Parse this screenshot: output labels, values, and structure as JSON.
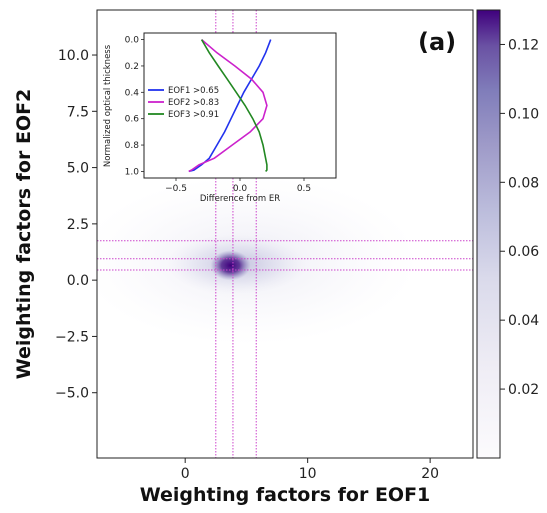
{
  "chart_data": [
    {
      "type": "heatmap",
      "panel_label": "(a)",
      "xlabel": "Weighting factors for EOF1",
      "ylabel": "Weighting factors for EOF2",
      "xlim": [
        -7.2,
        23.5
      ],
      "ylim": [
        -7.9,
        12.0
      ],
      "xticks": [
        0,
        10,
        20
      ],
      "xtick_labels": [
        "0",
        "10",
        "20"
      ],
      "yticks": [
        -5.0,
        -2.5,
        0.0,
        2.5,
        5.0,
        7.5,
        10.0
      ],
      "ytick_labels": [
        "−5.0",
        "−2.5",
        "0.0",
        "2.5",
        "5.0",
        "7.5",
        "10.0"
      ],
      "density_peak": {
        "x": 3.7,
        "y": 0.7
      },
      "vertical_reference_lines_x": [
        2.5,
        3.9,
        5.8
      ],
      "horizontal_reference_lines_y": [
        0.45,
        0.95,
        1.75
      ],
      "reference_line_color": "#cc44cc",
      "colorbar": {
        "ticks": [
          0.02,
          0.04,
          0.06,
          0.08,
          0.1,
          0.12
        ],
        "tick_labels": [
          "0.02",
          "0.04",
          "0.06",
          "0.08",
          "0.10",
          "0.12"
        ],
        "range": [
          0.0,
          0.13
        ],
        "colormap": "Purples",
        "color_low": "#fcfbfd",
        "color_high": "#3f007d"
      }
    },
    {
      "type": "line",
      "xlabel": "Difference from ER",
      "ylabel": "Normalized optical thickness",
      "xlim": [
        -0.75,
        0.75
      ],
      "ylim": [
        1.05,
        -0.05
      ],
      "xticks": [
        -0.5,
        0.0,
        0.5
      ],
      "xtick_labels": [
        "−0.5",
        "0.0",
        "0.5"
      ],
      "yticks": [
        0.0,
        0.2,
        0.4,
        0.6,
        0.8,
        1.0
      ],
      "ytick_labels": [
        "0.0",
        "0.2",
        "0.4",
        "0.6",
        "0.8",
        "1.0"
      ],
      "legend_position": "center-left",
      "series": [
        {
          "name": "EOF1 >0.65",
          "color": "#2233ee",
          "x": [
            0.24,
            0.2,
            0.15,
            0.09,
            0.03,
            -0.02,
            -0.07,
            -0.12,
            -0.18,
            -0.24,
            -0.3,
            -0.36,
            -0.4
          ],
          "y": [
            0.0,
            0.1,
            0.2,
            0.3,
            0.4,
            0.5,
            0.6,
            0.7,
            0.8,
            0.9,
            0.95,
            0.99,
            1.0
          ]
        },
        {
          "name": "EOF2 >0.83",
          "color": "#cc22cc",
          "x": [
            -0.3,
            -0.18,
            -0.04,
            0.09,
            0.18,
            0.21,
            0.18,
            0.08,
            -0.06,
            -0.2,
            -0.32,
            -0.38,
            -0.4
          ],
          "y": [
            0.0,
            0.1,
            0.2,
            0.3,
            0.4,
            0.5,
            0.6,
            0.7,
            0.8,
            0.9,
            0.95,
            0.99,
            1.0
          ]
        },
        {
          "name": "EOF3 >0.91",
          "color": "#228822",
          "x": [
            -0.3,
            -0.24,
            -0.17,
            -0.1,
            -0.03,
            0.04,
            0.1,
            0.15,
            0.18,
            0.2,
            0.21,
            0.21,
            0.2
          ],
          "y": [
            0.0,
            0.1,
            0.2,
            0.3,
            0.4,
            0.5,
            0.6,
            0.7,
            0.8,
            0.9,
            0.95,
            0.99,
            1.0
          ]
        }
      ]
    }
  ]
}
